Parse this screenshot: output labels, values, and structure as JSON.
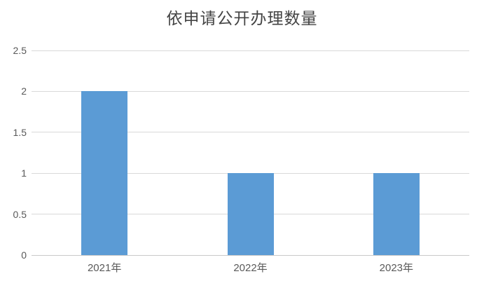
{
  "chart_data": {
    "type": "bar",
    "title": "依申请公开办理数量",
    "categories": [
      "2021年",
      "2022年",
      "2023年"
    ],
    "values": [
      2,
      1,
      1
    ],
    "xlabel": "",
    "ylabel": "",
    "ylim": [
      0,
      2.5
    ],
    "ytick_labels": [
      "0",
      "0.5",
      "1",
      "1.5",
      "2",
      "2.5"
    ],
    "grid": "horizontal-only",
    "legend_position": "none",
    "colors": {
      "bar": "#5b9bd5",
      "gridline": "#d9d9d9",
      "axis_line": "#c9c9c9",
      "tick_text": "#595959",
      "title_text": "#444444",
      "background": "#ffffff"
    }
  }
}
